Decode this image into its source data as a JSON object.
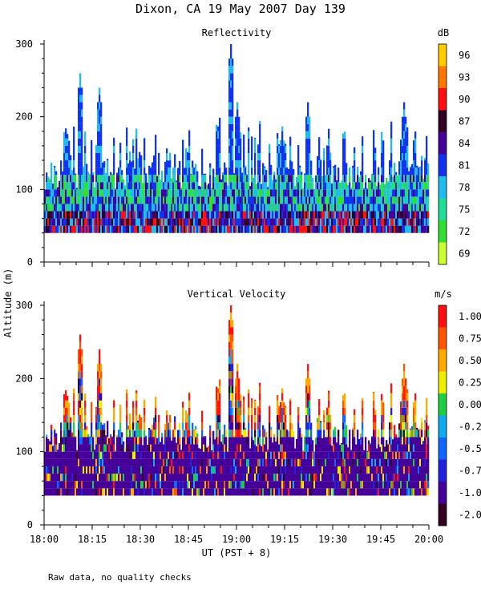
{
  "figure": {
    "title": "Dixon, CA 19 May 2007  Day 139",
    "y_axis_label": "Altitude (m)",
    "x_axis_label": "UT  (PST + 8)",
    "footnote": "Raw data, no quality checks"
  },
  "chart_data": [
    {
      "type": "heatmap",
      "title": "Reflectivity",
      "xlabel": "UT  (PST + 8)",
      "ylabel": "Altitude (m)",
      "xlim": [
        "18:00",
        "20:00"
      ],
      "ylim": [
        0,
        300
      ],
      "yticks": [
        0,
        100,
        200,
        300
      ],
      "xticks": [
        "18:00",
        "18:15",
        "18:30",
        "18:45",
        "19:00",
        "19:15",
        "19:30",
        "19:45",
        "20:00"
      ],
      "data_floor_m": 40,
      "background_top_m": 120,
      "colorbar": {
        "unit": "dB",
        "levels": [
          69,
          72,
          75,
          78,
          81,
          84,
          87,
          90,
          93,
          96
        ],
        "labels": [
          "96",
          "93",
          "90",
          "87",
          "84",
          "81",
          "78",
          "75",
          "72",
          "69"
        ],
        "colors": [
          "#ccff33",
          "#33dd33",
          "#22dd99",
          "#22bbee",
          "#1133ee",
          "#440099",
          "#330022",
          "#ff1111",
          "#ff7700",
          "#ffcc00"
        ]
      },
      "peak_echoes": [
        {
          "time": "18:11",
          "top_m": 260
        },
        {
          "time": "18:17",
          "top_m": 240
        },
        {
          "time": "18:58",
          "top_m": 300
        },
        {
          "time": "19:00",
          "top_m": 220
        },
        {
          "time": "19:22",
          "top_m": 220
        },
        {
          "time": "19:52",
          "top_m": 220
        }
      ]
    },
    {
      "type": "heatmap",
      "title": "Vertical Velocity",
      "xlabel": "UT  (PST + 8)",
      "ylabel": "Altitude (m)",
      "xlim": [
        "18:00",
        "20:00"
      ],
      "ylim": [
        0,
        300
      ],
      "yticks": [
        0,
        100,
        200,
        300
      ],
      "xticks": [
        "18:00",
        "18:15",
        "18:30",
        "18:45",
        "19:00",
        "19:15",
        "19:30",
        "19:45",
        "20:00"
      ],
      "data_floor_m": 40,
      "background_top_m": 120,
      "colorbar": {
        "unit": "m/s",
        "levels": [
          -2.0,
          -1.0,
          -0.75,
          -0.5,
          -0.25,
          0.0,
          0.25,
          0.5,
          0.75,
          1.0
        ],
        "labels": [
          "1.00",
          "0.75",
          "0.50",
          "0.25",
          "0.00",
          "-0.25",
          "-0.50",
          "-0.75",
          "-1.00",
          "-2.00"
        ],
        "colors": [
          "#330022",
          "#440099",
          "#2222dd",
          "#1166ff",
          "#11aaee",
          "#22cc44",
          "#eeee00",
          "#ffaa00",
          "#ff5500",
          "#ff1111"
        ]
      },
      "peak_echoes": [
        {
          "time": "18:11",
          "top_m": 260
        },
        {
          "time": "18:17",
          "top_m": 240
        },
        {
          "time": "18:58",
          "top_m": 300
        },
        {
          "time": "19:00",
          "top_m": 220
        },
        {
          "time": "19:22",
          "top_m": 220
        },
        {
          "time": "19:52",
          "top_m": 220
        }
      ]
    }
  ]
}
